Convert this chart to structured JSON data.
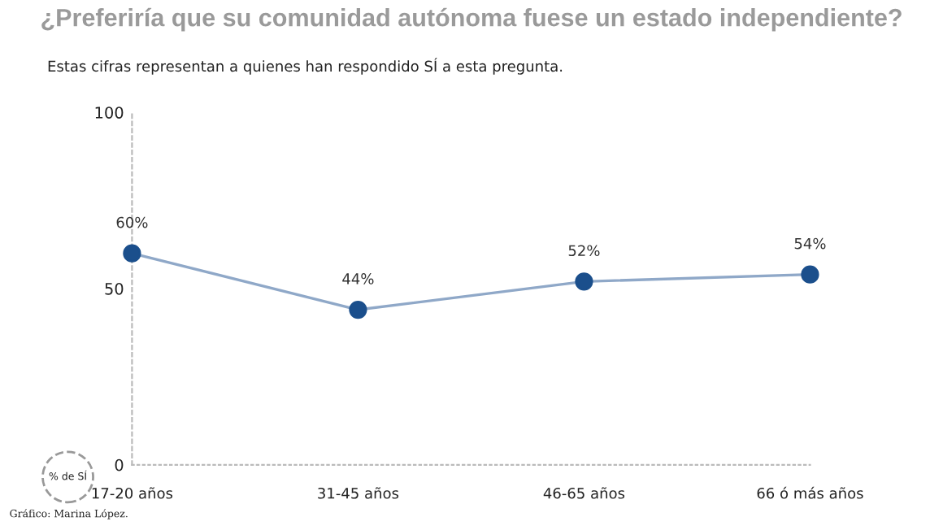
{
  "chart_data": {
    "type": "line",
    "title": "¿Preferiría que su comunidad autónoma fuese un estado independiente?",
    "subtitle": "Estas cifras representan a quienes han respondido SÍ a esta pregunta.",
    "categories": [
      "17-20 años",
      "31-45 años",
      "46-65 años",
      "66 ó más años"
    ],
    "series": [
      {
        "color": "#1b4f8c",
        "values": [
          60,
          44,
          52,
          54
        ],
        "value_labels": [
          "60%",
          "44%",
          "52%",
          "54%"
        ]
      }
    ],
    "ylim": [
      0,
      100
    ],
    "yticks": [
      0,
      50,
      100
    ],
    "marker": "circle",
    "line_style": "solid",
    "grid": false,
    "legend": false,
    "annotations": [
      "% de SÍ",
      "Gráfico: Marina López."
    ]
  }
}
